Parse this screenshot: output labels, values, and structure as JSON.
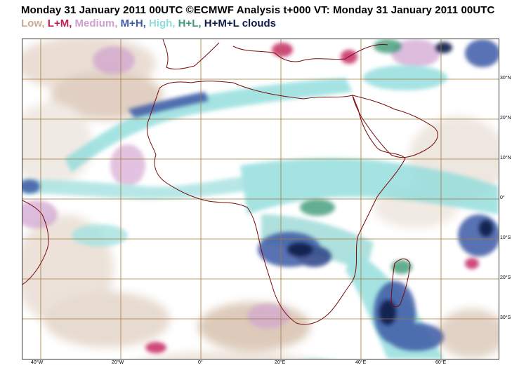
{
  "header": {
    "title": "Monday 31 January 2011 00UTC ©ECMWF Analysis t+000 VT: Monday 31 January 2011 00UTC"
  },
  "legend": {
    "items": [
      {
        "label": "Low,",
        "color": "#c9ab94"
      },
      {
        "label": "L+M,",
        "color": "#c21e5a"
      },
      {
        "label": "Medium,",
        "color": "#cfa0cf"
      },
      {
        "label": "M+H,",
        "color": "#3d5aa6"
      },
      {
        "label": "High,",
        "color": "#8fdcdc"
      },
      {
        "label": "H+L,",
        "color": "#3e9a78"
      },
      {
        "label": "H+M+L clouds",
        "color": "#0d1a4a"
      }
    ]
  },
  "map": {
    "border_color": "#7a0a0a",
    "grid_color": "#a27a3a",
    "lon_labels": [
      "40°W",
      "20°W",
      "0°",
      "20°E",
      "40°E",
      "60°E"
    ],
    "lat_labels": [
      "30°N",
      "20°N",
      "10°N",
      "0°",
      "10°S",
      "20°S",
      "30°S"
    ]
  }
}
